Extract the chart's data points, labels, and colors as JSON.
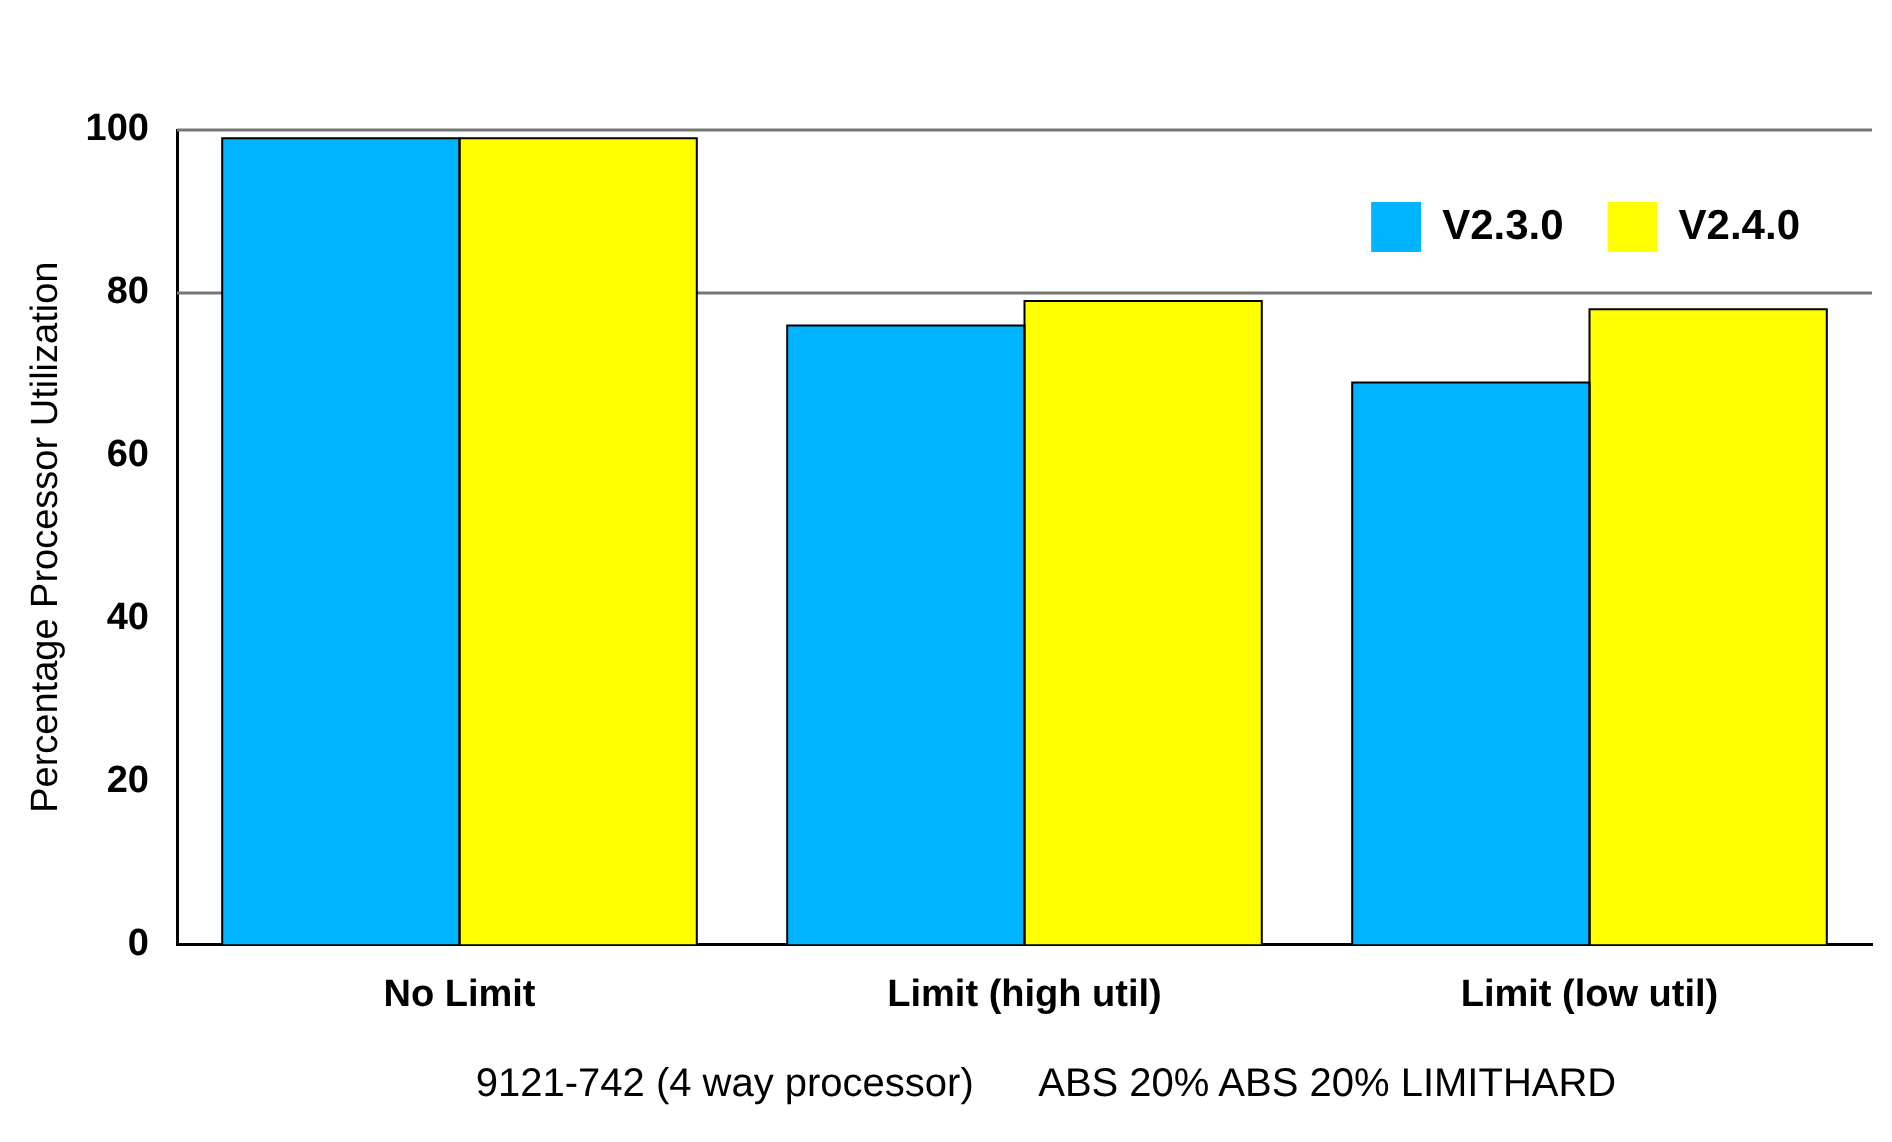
{
  "chart_data": {
    "type": "bar",
    "ylabel": "Percentage Processor Utilization",
    "categories": [
      "No Limit",
      "Limit (high util)",
      "Limit (low util)"
    ],
    "series": [
      {
        "name": "V2.3.0",
        "color": "#00b4ff",
        "values": [
          99,
          76,
          69
        ]
      },
      {
        "name": "V2.4.0",
        "color": "#ffff00",
        "values": [
          99,
          79,
          78
        ]
      }
    ],
    "ylim": [
      0,
      100
    ],
    "yticks": [
      0,
      20,
      40,
      60,
      80,
      100
    ],
    "legend": "top right",
    "ref_lines": [
      {
        "axis": "y",
        "value": 80
      }
    ],
    "annotations": [
      "9121-742 (4 way processor)      ABS 20% ABS 20% LIMITHARD"
    ]
  }
}
